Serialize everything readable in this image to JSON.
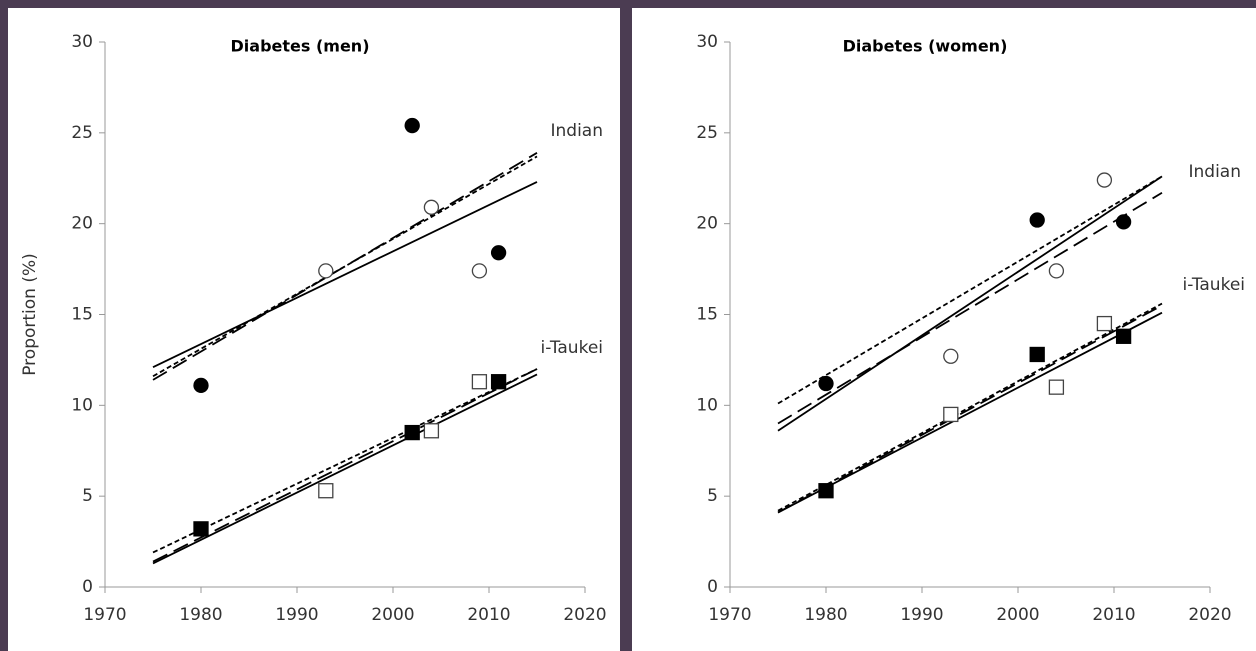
{
  "chart_data": [
    {
      "type": "scatter",
      "title": "Diabetes (men)",
      "ylabel": "Proportion (%)",
      "annotations": [
        "Indian",
        "i-Taukei"
      ],
      "xlim": [
        1970,
        2020
      ],
      "xticks": [
        1970,
        1980,
        1990,
        2000,
        2010,
        2020
      ],
      "ylim": [
        0,
        30
      ],
      "yticks": [
        0,
        5,
        10,
        15,
        20,
        25,
        30
      ],
      "series": [
        {
          "marker": "circle",
          "fill": "filled",
          "color": "#000000",
          "x": [
            1980,
            2002,
            2011
          ],
          "values": [
            11.1,
            25.4,
            18.4
          ]
        },
        {
          "marker": "circle",
          "fill": "open",
          "color": "#000000",
          "x": [
            1993,
            2004,
            2009
          ],
          "values": [
            17.4,
            20.9,
            17.4
          ]
        },
        {
          "marker": "square",
          "fill": "filled",
          "color": "#000000",
          "x": [
            1980,
            2002,
            2011
          ],
          "values": [
            3.2,
            8.5,
            11.3
          ]
        },
        {
          "marker": "square",
          "fill": "open",
          "color": "#000000",
          "x": [
            1993,
            2004,
            2009
          ],
          "values": [
            5.3,
            8.6,
            11.3
          ]
        },
        {
          "line": "solid",
          "color": "#000000",
          "x": [
            1975,
            2015
          ],
          "values": [
            12.1,
            22.3
          ]
        },
        {
          "line": "dashed",
          "color": "#000000",
          "x": [
            1975,
            2015
          ],
          "values": [
            11.4,
            23.9
          ]
        },
        {
          "line": "dotted",
          "color": "#000000",
          "x": [
            1975,
            2015
          ],
          "values": [
            11.6,
            23.7
          ]
        },
        {
          "line": "solid",
          "color": "#000000",
          "x": [
            1975,
            2015
          ],
          "values": [
            1.3,
            11.7
          ]
        },
        {
          "line": "dashed",
          "color": "#000000",
          "x": [
            1975,
            2015
          ],
          "values": [
            1.4,
            12.0
          ]
        },
        {
          "line": "dotted",
          "color": "#000000",
          "x": [
            1975,
            2015
          ],
          "values": [
            1.9,
            12.0
          ]
        }
      ]
    },
    {
      "type": "scatter",
      "title": "Diabetes (women)",
      "annotations": [
        "Indian",
        "i-Taukei"
      ],
      "xlim": [
        1970,
        2020
      ],
      "xticks": [
        1970,
        1980,
        1990,
        2000,
        2010,
        2020
      ],
      "ylim": [
        0,
        30
      ],
      "yticks": [
        0,
        5,
        10,
        15,
        20,
        25,
        30
      ],
      "series": [
        {
          "marker": "circle",
          "fill": "filled",
          "color": "#000000",
          "x": [
            1980,
            2002,
            2011
          ],
          "values": [
            11.2,
            20.2,
            20.1
          ]
        },
        {
          "marker": "circle",
          "fill": "open",
          "color": "#000000",
          "x": [
            1993,
            2004,
            2009
          ],
          "values": [
            12.7,
            17.4,
            22.4
          ]
        },
        {
          "marker": "square",
          "fill": "filled",
          "color": "#000000",
          "x": [
            1980,
            2002,
            2011
          ],
          "values": [
            5.3,
            12.8,
            13.8
          ]
        },
        {
          "marker": "square",
          "fill": "open",
          "color": "#000000",
          "x": [
            1993,
            2004,
            2009
          ],
          "values": [
            9.5,
            11.0,
            14.5
          ]
        },
        {
          "line": "solid",
          "color": "#000000",
          "x": [
            1975,
            2015
          ],
          "values": [
            8.6,
            22.6
          ]
        },
        {
          "line": "dashed",
          "color": "#000000",
          "x": [
            1975,
            2015
          ],
          "values": [
            9.0,
            21.7
          ]
        },
        {
          "line": "dotted",
          "color": "#000000",
          "x": [
            1975,
            2015
          ],
          "values": [
            10.1,
            22.6
          ]
        },
        {
          "line": "solid",
          "color": "#000000",
          "x": [
            1975,
            2015
          ],
          "values": [
            4.1,
            15.1
          ]
        },
        {
          "line": "dashed",
          "color": "#000000",
          "x": [
            1975,
            2015
          ],
          "values": [
            4.1,
            15.5
          ]
        },
        {
          "line": "dotted",
          "color": "#000000",
          "x": [
            1975,
            2015
          ],
          "values": [
            4.2,
            15.6
          ]
        }
      ]
    }
  ]
}
